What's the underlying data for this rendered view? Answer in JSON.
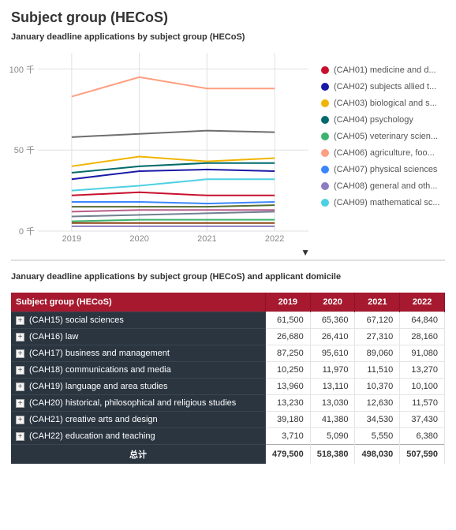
{
  "title": "Subject group (HECoS)",
  "chart": {
    "subtitle": "January deadline applications by subject group (HECoS)",
    "x_categories": [
      "2019",
      "2020",
      "2021",
      "2022"
    ],
    "y_ticks": [
      0,
      50,
      100
    ],
    "y_unit": "千",
    "ylim": [
      0,
      110
    ],
    "background_color": "#ffffff",
    "grid_color": "#e0e0e0",
    "axis_font_color": "#888888",
    "axis_font_size": 11,
    "line_width": 2,
    "series": [
      {
        "label": "(CAH01) medicine and d...",
        "color": "#c8102e",
        "values": [
          22,
          24,
          22,
          22
        ]
      },
      {
        "label": "(CAH02) subjects allied t...",
        "color": "#1a1aa6",
        "values": [
          32,
          37,
          38,
          37
        ]
      },
      {
        "label": "(CAH03) biological and s...",
        "color": "#f0b400",
        "values": [
          40,
          46,
          43,
          45
        ]
      },
      {
        "label": "(CAH04) psychology",
        "color": "#006a6a",
        "values": [
          36,
          40,
          42,
          42
        ]
      },
      {
        "label": "(CAH05) veterinary scien...",
        "color": "#3cb371",
        "values": [
          6,
          7,
          7,
          7
        ]
      },
      {
        "label": "(CAH06) agriculture, foo...",
        "color": "#ff9e80",
        "values": [
          83,
          95,
          88,
          88
        ]
      },
      {
        "label": "(CAH07) physical sciences",
        "color": "#3a86ff",
        "values": [
          18,
          18,
          17,
          18
        ]
      },
      {
        "label": "(CAH08) general and oth...",
        "color": "#8e7cc3",
        "values": [
          3,
          3,
          3,
          3
        ]
      },
      {
        "label": "(CAH09) mathematical sc...",
        "color": "#4dd0e1",
        "values": [
          25,
          28,
          32,
          32
        ]
      },
      {
        "label": "",
        "color": "#6e6e6e",
        "values": [
          58,
          60,
          62,
          61
        ]
      },
      {
        "label": "",
        "color": "#b85c8a",
        "values": [
          12,
          13,
          13,
          13
        ]
      },
      {
        "label": "",
        "color": "#556b2f",
        "values": [
          15,
          15,
          15,
          16
        ]
      },
      {
        "label": "",
        "color": "#8b4513",
        "values": [
          5,
          5,
          5,
          5
        ]
      },
      {
        "label": "",
        "color": "#708090",
        "values": [
          9,
          10,
          11,
          12
        ]
      }
    ]
  },
  "table": {
    "title": "January deadline applications by subject group (HECoS) and applicant domicile",
    "header_bg": "#a6192e",
    "header_fg": "#ffffff",
    "cat_bg": "#2a3540",
    "cat_fg": "#ffffff",
    "col_header": "Subject group (HECoS)",
    "year_headers": [
      "2019",
      "2020",
      "2021",
      "2022"
    ],
    "rows": [
      {
        "label": "(CAH15) social sciences",
        "values": [
          "61,500",
          "65,360",
          "67,120",
          "64,840"
        ]
      },
      {
        "label": "(CAH16) law",
        "values": [
          "26,680",
          "26,410",
          "27,310",
          "28,160"
        ]
      },
      {
        "label": "(CAH17) business and management",
        "values": [
          "87,250",
          "95,610",
          "89,060",
          "91,080"
        ]
      },
      {
        "label": "(CAH18) communications and media",
        "values": [
          "10,250",
          "11,970",
          "11,510",
          "13,270"
        ]
      },
      {
        "label": "(CAH19) language and area studies",
        "values": [
          "13,960",
          "13,110",
          "10,370",
          "10,100"
        ]
      },
      {
        "label": "(CAH20) historical, philosophical and religious studies",
        "values": [
          "13,230",
          "13,030",
          "12,630",
          "11,570"
        ]
      },
      {
        "label": "(CAH21) creative arts and design",
        "values": [
          "39,180",
          "41,380",
          "34,530",
          "37,430"
        ]
      },
      {
        "label": "(CAH22) education and teaching",
        "values": [
          "3,710",
          "5,090",
          "5,550",
          "6,380"
        ]
      }
    ],
    "total_label": "总计",
    "totals": [
      "479,500",
      "518,380",
      "498,030",
      "507,590"
    ]
  }
}
